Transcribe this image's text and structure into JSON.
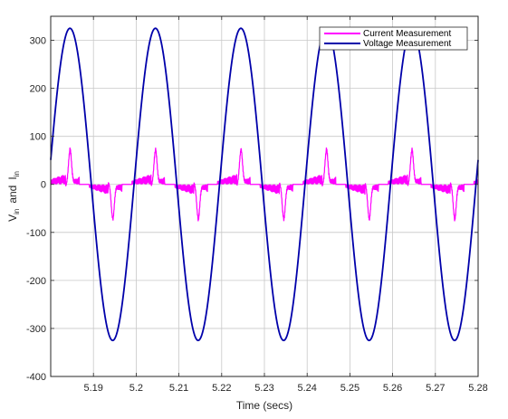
{
  "chart_data": {
    "type": "line",
    "title": "",
    "xlabel": "Time (secs)",
    "ylabel": {
      "v": "V",
      "v_sub": "in",
      "and": "and",
      "i": "I",
      "i_sub": "in"
    },
    "xlim": [
      5.18,
      5.28
    ],
    "ylim": [
      -400,
      350
    ],
    "xticks": [
      5.19,
      5.2,
      5.21,
      5.22,
      5.23,
      5.24,
      5.25,
      5.26,
      5.27,
      5.28
    ],
    "xtick_labels": [
      "5.19",
      "5.2",
      "5.21",
      "5.22",
      "5.23",
      "5.24",
      "5.25",
      "5.26",
      "5.27",
      "5.28"
    ],
    "yticks": [
      -400,
      -300,
      -200,
      -100,
      0,
      100,
      200,
      300
    ],
    "ytick_labels": [
      "-400",
      "-300",
      "-200",
      "-100",
      "0",
      "100",
      "200",
      "300"
    ],
    "grid": true,
    "legend_position": "top-right",
    "series": [
      {
        "name": "Current Measurement",
        "color": "#ff00ff",
        "kind": "pulsed-current",
        "period": 0.02,
        "positive_peak_times": [
          5.1845,
          5.2045,
          5.2245,
          5.2445,
          5.2645
        ],
        "negative_peak_times": [
          5.1945,
          5.2145,
          5.2345,
          5.2545,
          5.2745
        ],
        "peak_value": 72,
        "ripple_band": 20
      },
      {
        "name": "Voltage Measurement",
        "color": "#0000aa",
        "kind": "sine",
        "amplitude": 325,
        "period": 0.02,
        "positive_peak_times": [
          5.1845,
          5.2045,
          5.2245,
          5.2445,
          5.2645
        ],
        "negative_peak_times": [
          5.1945,
          5.2145,
          5.2345,
          5.2545,
          5.2745
        ]
      }
    ]
  }
}
